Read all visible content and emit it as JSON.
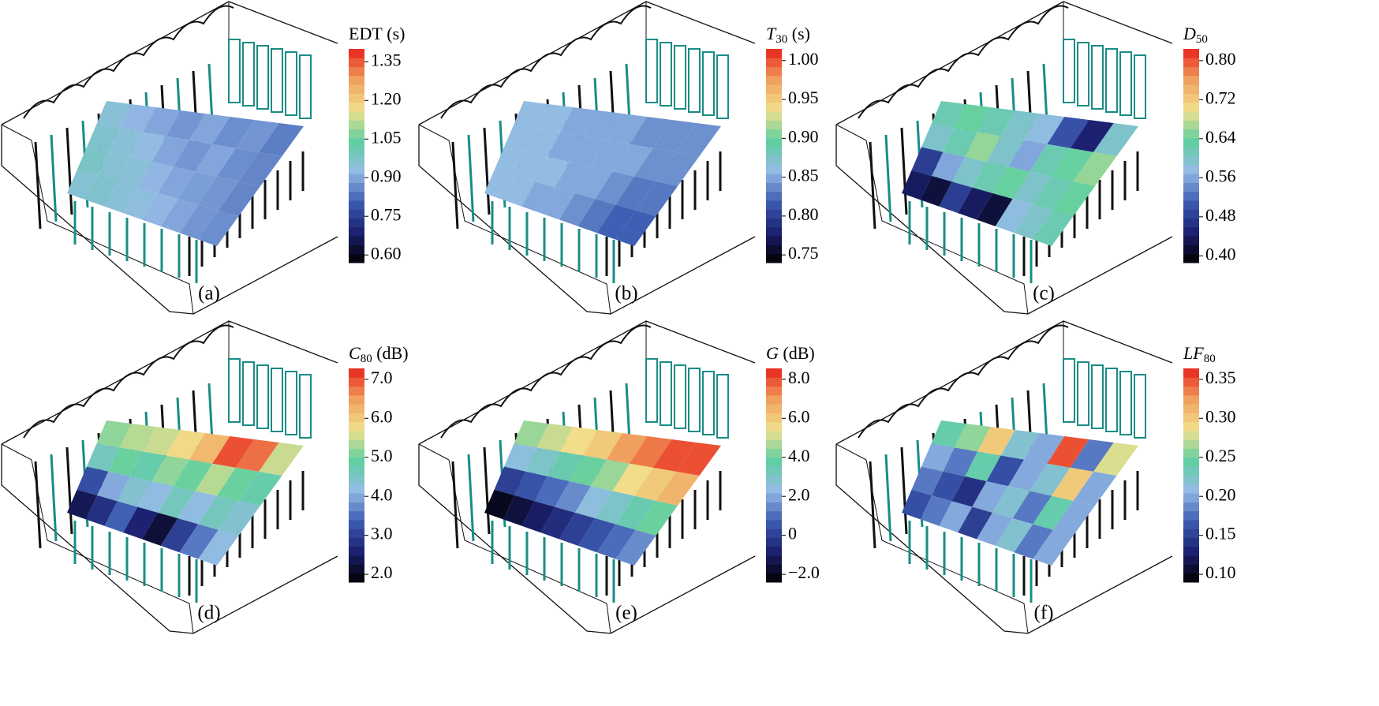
{
  "chart_data": [
    {
      "type": "heatmap",
      "label": "(a)",
      "title_symbol": "EDT",
      "title_italic": false,
      "title_unit": "(s)",
      "colormap": [
        "#000000",
        "#1b2070",
        "#3c5cb2",
        "#95bbe6",
        "#5dcfa0",
        "#f2e08c",
        "#f0a05e",
        "#e8231b"
      ],
      "clim": [
        0.57,
        1.4
      ],
      "ticks": [
        {
          "value": 0.6,
          "label": "0.60"
        },
        {
          "value": 0.75,
          "label": "0.75"
        },
        {
          "value": 0.9,
          "label": "0.90"
        },
        {
          "value": 1.05,
          "label": "1.05"
        },
        {
          "value": 1.2,
          "label": "1.20"
        },
        {
          "value": 1.35,
          "label": "1.35"
        }
      ],
      "values": [
        [
          0.95,
          0.92,
          0.9,
          0.88,
          0.9,
          0.87,
          0.88,
          0.85
        ],
        [
          0.97,
          0.95,
          0.93,
          0.9,
          0.88,
          0.9,
          0.87,
          0.86
        ],
        [
          0.98,
          0.96,
          0.95,
          0.92,
          0.9,
          0.89,
          0.88,
          0.86
        ],
        [
          0.96,
          0.97,
          0.95,
          0.94,
          0.92,
          0.9,
          0.88,
          0.87
        ]
      ]
    },
    {
      "type": "heatmap",
      "label": "(b)",
      "title_symbol": "T",
      "title_subscript": "30",
      "title_italic": true,
      "title_unit": "(s)",
      "colormap": [
        "#000000",
        "#1b2070",
        "#3c5cb2",
        "#95bbe6",
        "#5dcfa0",
        "#f2e08c",
        "#f0a05e",
        "#e8231b"
      ],
      "clim": [
        0.74,
        1.015
      ],
      "ticks": [
        {
          "value": 0.75,
          "label": "0.75"
        },
        {
          "value": 0.8,
          "label": "0.80"
        },
        {
          "value": 0.85,
          "label": "0.85"
        },
        {
          "value": 0.9,
          "label": "0.90"
        },
        {
          "value": 0.95,
          "label": "0.95"
        },
        {
          "value": 1.0,
          "label": "1.00"
        }
      ],
      "values": [
        [
          0.86,
          0.86,
          0.85,
          0.85,
          0.85,
          0.84,
          0.84,
          0.84
        ],
        [
          0.86,
          0.86,
          0.85,
          0.85,
          0.85,
          0.85,
          0.84,
          0.84
        ],
        [
          0.86,
          0.86,
          0.86,
          0.85,
          0.85,
          0.84,
          0.83,
          0.83
        ],
        [
          0.86,
          0.86,
          0.85,
          0.85,
          0.84,
          0.83,
          0.82,
          0.82
        ]
      ]
    },
    {
      "type": "heatmap",
      "label": "(c)",
      "title_symbol": "D",
      "title_subscript": "50",
      "title_italic": true,
      "colormap": [
        "#000000",
        "#1b2070",
        "#3c5cb2",
        "#95bbe6",
        "#5dcfa0",
        "#f2e08c",
        "#f0a05e",
        "#e8231b"
      ],
      "clim": [
        0.386,
        0.824
      ],
      "ticks": [
        {
          "value": 0.4,
          "label": "0.40"
        },
        {
          "value": 0.48,
          "label": "0.48"
        },
        {
          "value": 0.56,
          "label": "0.56"
        },
        {
          "value": 0.64,
          "label": "0.64"
        },
        {
          "value": 0.72,
          "label": "0.72"
        },
        {
          "value": 0.8,
          "label": "0.80"
        }
      ],
      "values": [
        [
          0.62,
          0.64,
          0.62,
          0.6,
          0.58,
          0.5,
          0.45,
          0.6
        ],
        [
          0.6,
          0.62,
          0.66,
          0.6,
          0.56,
          0.62,
          0.64,
          0.66
        ],
        [
          0.48,
          0.56,
          0.6,
          0.62,
          0.64,
          0.6,
          0.62,
          0.64
        ],
        [
          0.44,
          0.42,
          0.48,
          0.44,
          0.42,
          0.58,
          0.6,
          0.62
        ]
      ]
    },
    {
      "type": "heatmap",
      "label": "(d)",
      "title_symbol": "C",
      "title_subscript": "80",
      "title_italic": true,
      "title_unit": "(dB)",
      "colormap": [
        "#000000",
        "#1b2070",
        "#3c5cb2",
        "#95bbe6",
        "#5dcfa0",
        "#f2e08c",
        "#f0a05e",
        "#e8231b"
      ],
      "clim": [
        1.8,
        7.28
      ],
      "ticks": [
        {
          "value": 2,
          "label": "2.0"
        },
        {
          "value": 3,
          "label": "3.0"
        },
        {
          "value": 4,
          "label": "4.0"
        },
        {
          "value": 5,
          "label": "5.0"
        },
        {
          "value": 6,
          "label": "6.0"
        },
        {
          "value": 7,
          "label": "7.0"
        }
      ],
      "values": [
        [
          5.2,
          5.4,
          5.5,
          5.8,
          6.2,
          7.0,
          6.8,
          5.5
        ],
        [
          4.6,
          5.0,
          4.8,
          5.2,
          5.0,
          5.4,
          5.0,
          4.8
        ],
        [
          3.2,
          4.0,
          4.4,
          4.2,
          4.6,
          4.2,
          4.6,
          4.4
        ],
        [
          2.4,
          2.8,
          3.4,
          2.6,
          2.2,
          3.0,
          3.6,
          4.2
        ]
      ]
    },
    {
      "type": "heatmap",
      "label": "(e)",
      "title_symbol": "G",
      "title_italic": true,
      "title_unit": "(dB)",
      "colormap": [
        "#000000",
        "#1b2070",
        "#3c5cb2",
        "#95bbe6",
        "#5dcfa0",
        "#f2e08c",
        "#f0a05e",
        "#e8231b"
      ],
      "clim": [
        -2.4,
        8.56
      ],
      "ticks": [
        {
          "value": -2,
          "label": "−2.0"
        },
        0,
        {
          "value": 2,
          "label": "2.0"
        },
        {
          "value": 4,
          "label": "4.0"
        },
        {
          "value": 6,
          "label": "6.0"
        },
        {
          "value": 8,
          "label": "8.0"
        }
      ],
      "values": [
        [
          4.5,
          5.0,
          5.5,
          6.0,
          7.0,
          7.5,
          8.0,
          8.0
        ],
        [
          2.5,
          3.0,
          3.5,
          4.0,
          4.5,
          5.5,
          6.0,
          6.5
        ],
        [
          0.0,
          0.5,
          1.0,
          1.5,
          2.5,
          3.0,
          3.5,
          4.0
        ],
        [
          -2.0,
          -1.5,
          -1.0,
          -0.5,
          0.0,
          0.5,
          1.0,
          1.5
        ]
      ]
    },
    {
      "type": "heatmap",
      "label": "(f)",
      "title_symbol": "LF",
      "title_subscript": "80",
      "title_italic": true,
      "colormap": [
        "#000000",
        "#1b2070",
        "#3c5cb2",
        "#95bbe6",
        "#5dcfa0",
        "#f2e08c",
        "#f0a05e",
        "#e8231b"
      ],
      "clim": [
        0.09,
        0.364
      ],
      "ticks": [
        {
          "value": 0.1,
          "label": "0.10"
        },
        {
          "value": 0.15,
          "label": "0.15"
        },
        {
          "value": 0.2,
          "label": "0.20"
        },
        {
          "value": 0.25,
          "label": "0.25"
        },
        {
          "value": 0.3,
          "label": "0.30"
        },
        {
          "value": 0.35,
          "label": "0.35"
        }
      ],
      "values": [
        [
          0.24,
          0.26,
          0.3,
          0.22,
          0.2,
          0.35,
          0.18,
          0.28
        ],
        [
          0.2,
          0.18,
          0.24,
          0.16,
          0.2,
          0.22,
          0.3,
          0.2
        ],
        [
          0.18,
          0.16,
          0.14,
          0.2,
          0.22,
          0.18,
          0.24,
          0.2
        ],
        [
          0.16,
          0.18,
          0.2,
          0.15,
          0.2,
          0.22,
          0.18,
          0.2
        ]
      ]
    }
  ]
}
